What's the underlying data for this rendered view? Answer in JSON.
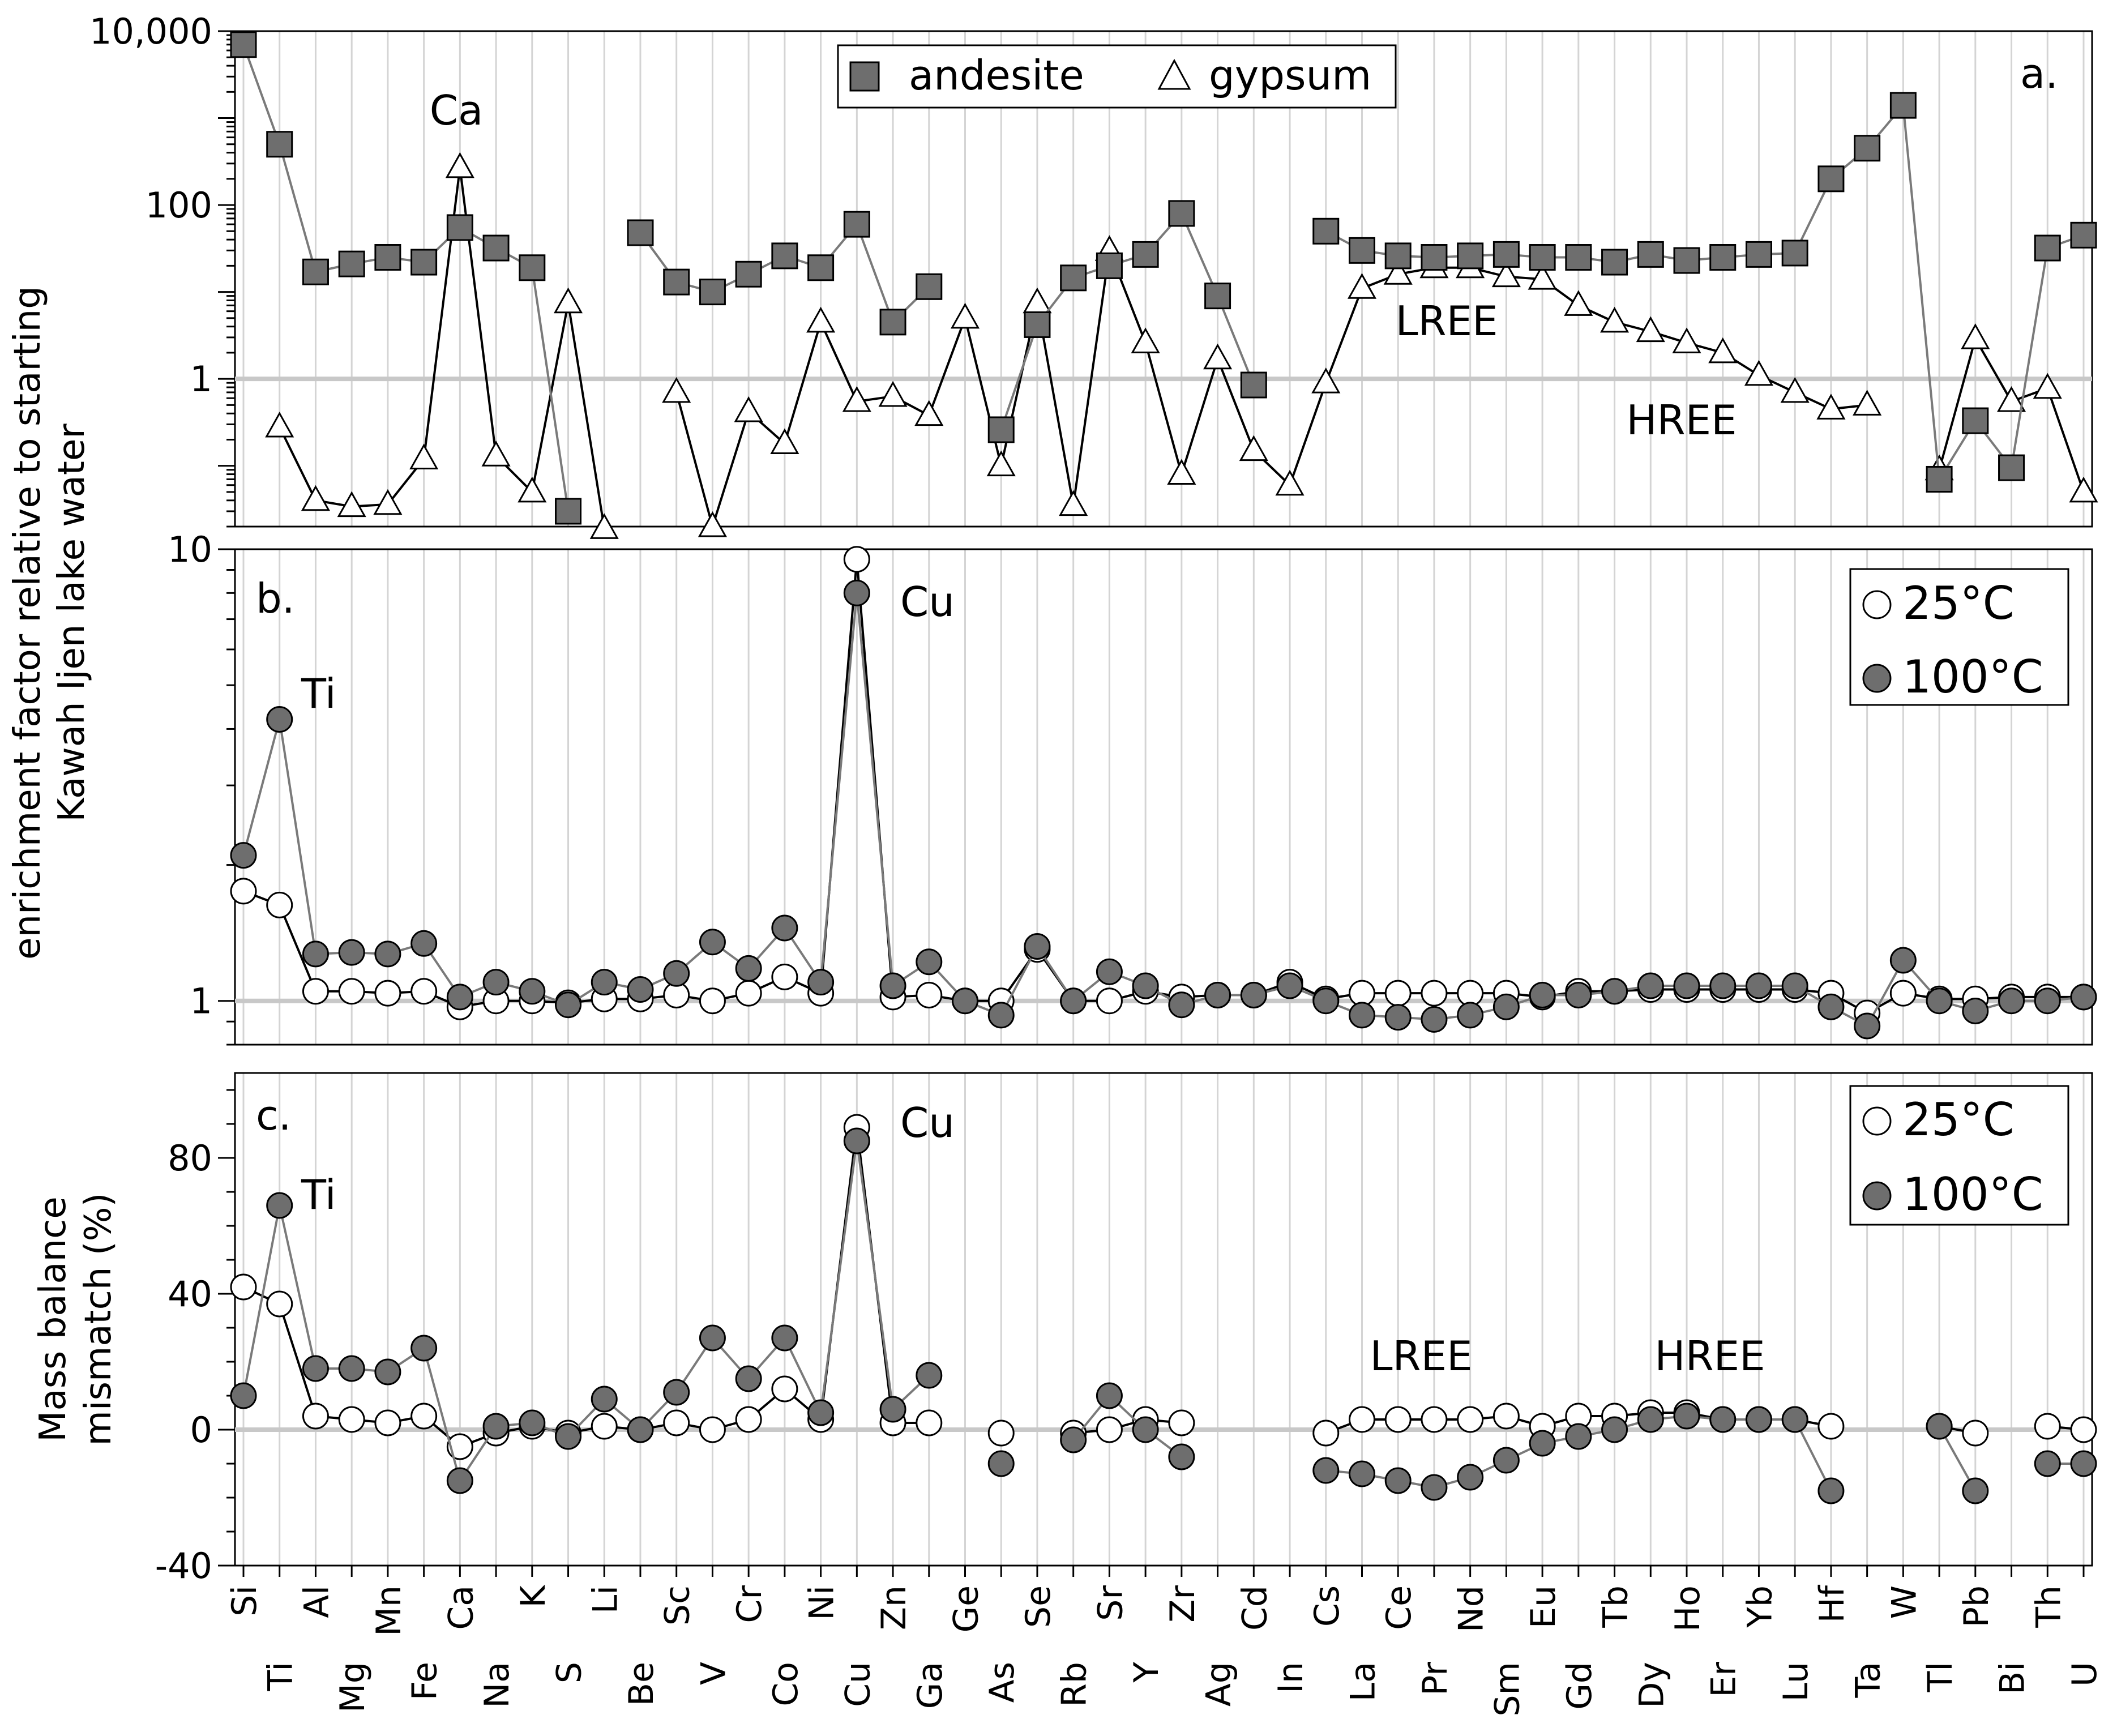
{
  "figure": {
    "ylabel_top_line1": "enrichment factor relative to starting",
    "ylabel_top_line2": "Kawah Ijen lake water"
  },
  "chart_data": [
    {
      "type": "line",
      "panel": "a.",
      "yscale": "log",
      "ylim": [
        0.02,
        10000
      ],
      "yticks": [
        "10,000",
        "100",
        "1"
      ],
      "ylabel": "enrichment factor relative to starting Kawah Ijen lake water",
      "categories": [
        "Si",
        "Ti",
        "Al",
        "Mg",
        "Mn",
        "Fe",
        "Ca",
        "Na",
        "K",
        "S",
        "Li",
        "Be",
        "Sc",
        "V",
        "Cr",
        "Co",
        "Ni",
        "Cu",
        "Zn",
        "Ga",
        "Ge",
        "As",
        "Se",
        "Rb",
        "Sr",
        "Y",
        "Zr",
        "Ag",
        "Cd",
        "In",
        "Cs",
        "La",
        "Ce",
        "Pr",
        "Nd",
        "Sm",
        "Eu",
        "Gd",
        "Tb",
        "Dy",
        "Ho",
        "Er",
        "Yb",
        "Lu",
        "Hf",
        "Ta",
        "W",
        "Tl",
        "Pb",
        "Bi",
        "Th",
        "U"
      ],
      "series": [
        {
          "name": "andesite",
          "marker": "square",
          "values": [
            7000,
            500,
            17,
            21,
            25,
            22,
            55,
            32,
            19,
            0.03,
            null,
            48,
            13,
            10,
            16,
            26,
            19,
            60,
            4.5,
            11.5,
            null,
            0.26,
            4.2,
            14.5,
            20,
            27,
            80,
            9,
            0.85,
            null,
            50,
            30,
            26,
            25,
            26,
            27,
            25,
            25,
            22,
            27,
            23,
            25,
            27,
            28,
            200,
            450,
            1400,
            0.07,
            0.33,
            0.095,
            32,
            45
          ]
        },
        {
          "name": "gypsum",
          "marker": "triangle",
          "values": [
            null,
            0.28,
            0.04,
            0.034,
            0.036,
            0.12,
            270,
            0.13,
            0.05,
            7.5,
            0.019,
            null,
            0.7,
            0.02,
            0.42,
            0.18,
            4.5,
            0.55,
            0.63,
            0.38,
            5,
            0.1,
            7.5,
            0.035,
            30,
            2.6,
            0.08,
            1.7,
            0.15,
            0.06,
            0.9,
            11,
            16,
            19,
            19,
            15,
            14,
            7,
            4.5,
            3.5,
            2.6,
            2,
            1.1,
            0.7,
            0.45,
            0.5,
            null,
            0.09,
            2.9,
            0.55,
            0.78,
            0.05
          ]
        }
      ],
      "legend": [
        "andesite",
        "gypsum"
      ],
      "annotations": [
        "Ca",
        "LREE",
        "HREE"
      ]
    },
    {
      "type": "line",
      "panel": "b.",
      "yscale": "log",
      "ylim": [
        0.8,
        10
      ],
      "yticks": [
        "10",
        "1"
      ],
      "categories": [
        "Si",
        "Ti",
        "Al",
        "Mg",
        "Mn",
        "Fe",
        "Ca",
        "Na",
        "K",
        "S",
        "Li",
        "Be",
        "Sc",
        "V",
        "Cr",
        "Co",
        "Ni",
        "Cu",
        "Zn",
        "Ga",
        "Ge",
        "As",
        "Se",
        "Rb",
        "Sr",
        "Y",
        "Zr",
        "Ag",
        "Cd",
        "In",
        "Cs",
        "La",
        "Ce",
        "Pr",
        "Nd",
        "Sm",
        "Eu",
        "Gd",
        "Tb",
        "Dy",
        "Ho",
        "Er",
        "Yb",
        "Lu",
        "Hf",
        "Ta",
        "W",
        "Tl",
        "Pb",
        "Bi",
        "Th",
        "U"
      ],
      "series": [
        {
          "name": "25°C",
          "values": [
            1.75,
            1.63,
            1.05,
            1.05,
            1.04,
            1.05,
            0.97,
            1.0,
            1.0,
            0.99,
            1.01,
            1.01,
            1.03,
            1.0,
            1.04,
            1.13,
            1.04,
            9.5,
            1.02,
            1.03,
            1.0,
            1.0,
            1.3,
            1.0,
            1.0,
            1.05,
            1.02,
            1.03,
            1.03,
            1.1,
            1.01,
            1.04,
            1.04,
            1.04,
            1.04,
            1.04,
            1.02,
            1.05,
            1.05,
            1.06,
            1.06,
            1.06,
            1.06,
            1.06,
            1.04,
            0.94,
            1.04,
            1.01,
            1.01,
            1.02,
            1.02,
            1.02
          ]
        },
        {
          "name": "100°C",
          "values": [
            2.1,
            4.2,
            1.27,
            1.28,
            1.27,
            1.34,
            1.02,
            1.1,
            1.05,
            0.98,
            1.1,
            1.06,
            1.15,
            1.35,
            1.18,
            1.45,
            1.1,
            8.0,
            1.08,
            1.22,
            1.0,
            0.93,
            1.32,
            1.0,
            1.16,
            1.08,
            0.98,
            1.03,
            1.03,
            1.08,
            1.0,
            0.93,
            0.92,
            0.91,
            0.93,
            0.97,
            1.03,
            1.03,
            1.05,
            1.08,
            1.08,
            1.08,
            1.08,
            1.08,
            0.97,
            0.88,
            1.23,
            1.0,
            0.95,
            1.0,
            1.0,
            1.02
          ]
        }
      ],
      "legend": [
        "25°C",
        "100°C"
      ],
      "annotations": [
        "Ti",
        "Cu"
      ]
    },
    {
      "type": "line",
      "panel": "c.",
      "ylim": [
        -40,
        105
      ],
      "yticks": [
        80,
        40,
        0,
        -40
      ],
      "ylabel": "Mass balance mismatch (%)",
      "categories": [
        "Si",
        "Ti",
        "Al",
        "Mg",
        "Mn",
        "Fe",
        "Ca",
        "Na",
        "K",
        "S",
        "Li",
        "Be",
        "Sc",
        "V",
        "Cr",
        "Co",
        "Ni",
        "Cu",
        "Zn",
        "Ga",
        "Ge",
        "As",
        "Se",
        "Rb",
        "Sr",
        "Y",
        "Zr",
        "Ag",
        "Cd",
        "In",
        "Cs",
        "La",
        "Ce",
        "Pr",
        "Nd",
        "Sm",
        "Eu",
        "Gd",
        "Tb",
        "Dy",
        "Ho",
        "Er",
        "Yb",
        "Lu",
        "Hf",
        "Ta",
        "W",
        "Tl",
        "Pb",
        "Bi",
        "Th",
        "U"
      ],
      "series": [
        {
          "name": "25°C",
          "values": [
            42,
            37,
            4,
            3,
            2,
            4,
            -5,
            -1,
            1,
            -1,
            1,
            0,
            2,
            0,
            3,
            12,
            3,
            89,
            2,
            2,
            null,
            -1,
            null,
            -1,
            0,
            3,
            2,
            null,
            null,
            null,
            -1,
            3,
            3,
            3,
            3,
            4,
            1,
            4,
            4,
            5,
            5,
            3,
            3,
            3,
            1,
            null,
            null,
            1,
            -1,
            null,
            1,
            0
          ]
        },
        {
          "name": "100°C",
          "values": [
            10,
            66,
            18,
            18,
            17,
            24,
            -15,
            1,
            2,
            -2,
            9,
            0,
            11,
            27,
            15,
            27,
            5,
            85,
            6,
            16,
            null,
            -10,
            null,
            -3,
            10,
            0,
            -8,
            null,
            null,
            null,
            -12,
            -13,
            -15,
            -17,
            -14,
            -9,
            -4,
            -2,
            0,
            3,
            4,
            3,
            3,
            3,
            -18,
            null,
            null,
            1,
            -18,
            null,
            -10,
            -10
          ]
        }
      ],
      "legend": [
        "25°C",
        "100°C"
      ],
      "annotations": [
        "Ti",
        "Cu",
        "LREE",
        "HREE"
      ]
    }
  ]
}
